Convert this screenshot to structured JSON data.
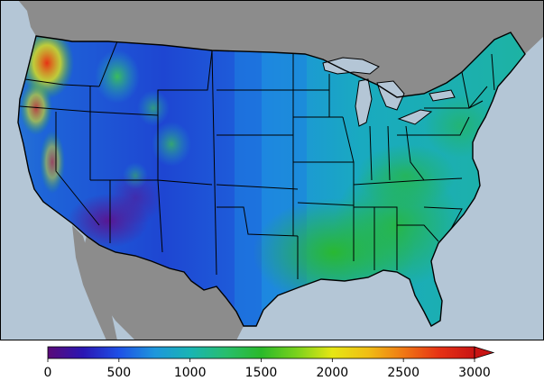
{
  "colorbar": {
    "ticks": [
      {
        "value": 0,
        "label": "0"
      },
      {
        "value": 500,
        "label": "500"
      },
      {
        "value": 1000,
        "label": "1000"
      },
      {
        "value": 1500,
        "label": "1500"
      },
      {
        "value": 2000,
        "label": "2000"
      },
      {
        "value": 2500,
        "label": "2500"
      },
      {
        "value": 3000,
        "label": "3000"
      }
    ],
    "min": 0,
    "max": 3000,
    "extend": "max",
    "stops": [
      {
        "value": 0,
        "color": "#5a0a78"
      },
      {
        "value": 250,
        "color": "#2a16b4"
      },
      {
        "value": 500,
        "color": "#1e50e6"
      },
      {
        "value": 750,
        "color": "#1e96dc"
      },
      {
        "value": 1000,
        "color": "#19b4b4"
      },
      {
        "value": 1250,
        "color": "#28be6e"
      },
      {
        "value": 1500,
        "color": "#2ab92a"
      },
      {
        "value": 1750,
        "color": "#7ad21c"
      },
      {
        "value": 2000,
        "color": "#e6e614"
      },
      {
        "value": 2250,
        "color": "#f0be14"
      },
      {
        "value": 2500,
        "color": "#f07814"
      },
      {
        "value": 2750,
        "color": "#e63214"
      },
      {
        "value": 3000,
        "color": "#c81414"
      }
    ]
  },
  "colors": {
    "ocean": "#b4c6d6",
    "foreign_land": "#8c8c8c",
    "lakes": "#b4c6d6",
    "boundaries": "#000000"
  }
}
